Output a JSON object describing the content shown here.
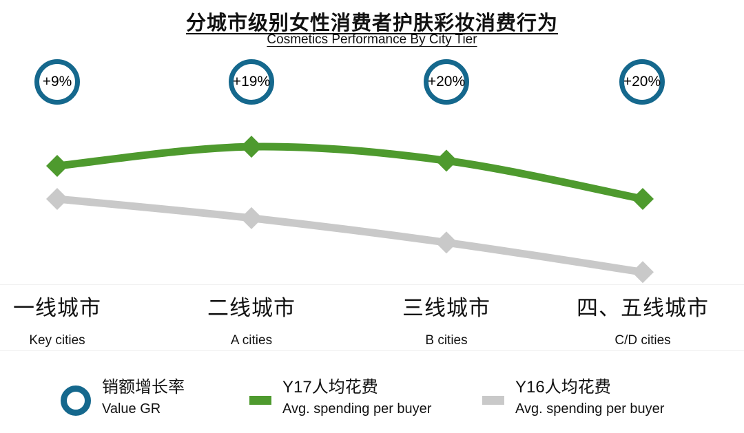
{
  "title": {
    "zh": "分城市级别女性消费者护肤彩妆消费行为",
    "en": "Cosmetics Performance By City Tier"
  },
  "colors": {
    "teal": "#15688D",
    "green": "#4E9A2E",
    "gray": "#C9C9C9"
  },
  "chart_data": {
    "type": "line",
    "categories_zh": [
      "一线城市",
      "二线城市",
      "三线城市",
      "四、五线城市"
    ],
    "categories_en": [
      "Key cities",
      "A cities",
      "B cities",
      "C/D cities"
    ],
    "growth_badges": [
      "+9%",
      "+19%",
      "+20%",
      "+20%"
    ],
    "series": [
      {
        "key": "y17",
        "name": "Y17人均花费",
        "color": "#4E9A2E",
        "values_relative": [
          68,
          79,
          71,
          49
        ]
      },
      {
        "key": "y16",
        "name": "Y16人均花费",
        "color": "#C9C9C9",
        "values_relative": [
          49,
          38,
          24,
          7
        ]
      }
    ],
    "ylim": [
      0,
      100
    ],
    "yaxis_visible": false,
    "marker": "diamond",
    "legend_position": "bottom"
  },
  "legend": [
    {
      "zh": "销额增长率",
      "en": "Value GR"
    },
    {
      "zh": "Y17人均花费",
      "en": "Avg. spending per buyer"
    },
    {
      "zh": "Y16人均花费",
      "en": "Avg. spending per buyer"
    }
  ]
}
